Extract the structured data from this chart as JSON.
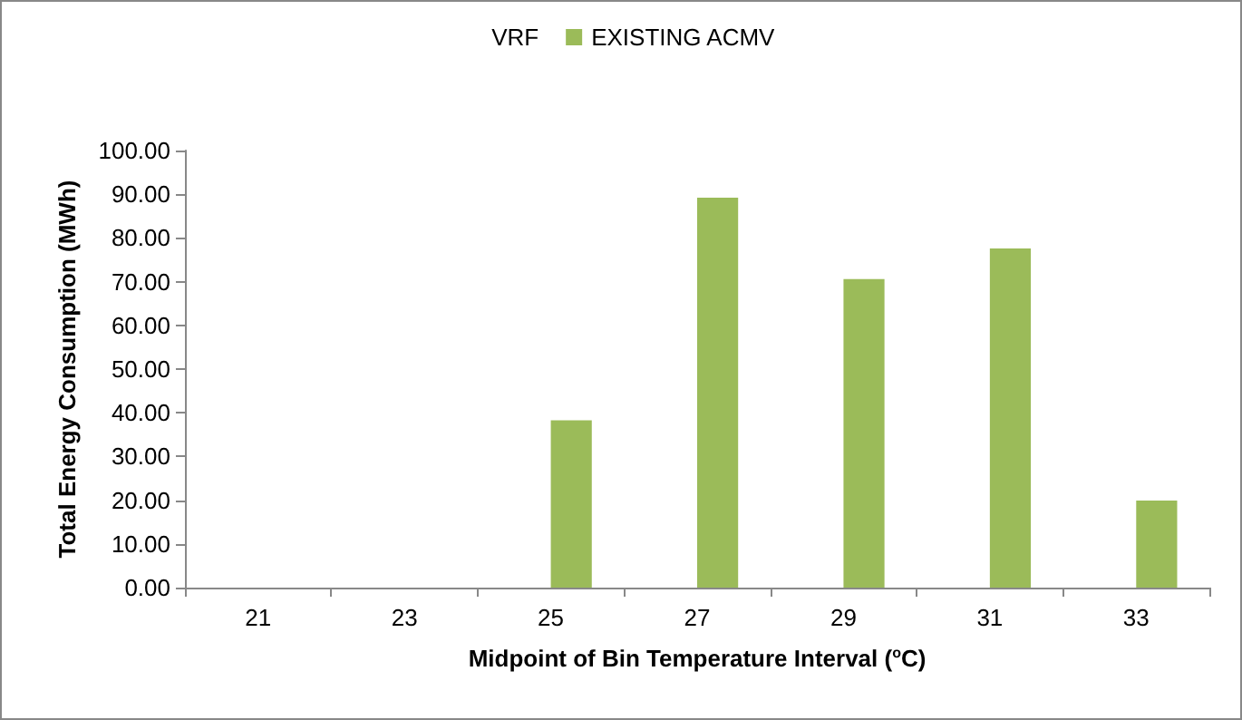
{
  "chart_data": {
    "type": "bar",
    "xlabel": "Midpoint of Bin Temperature Interval ($^{o}$C)",
    "ylabel": "Total Energy Consumption (MWh)",
    "categories": [
      "21",
      "23",
      "25",
      "27",
      "29",
      "31",
      "33"
    ],
    "series": [
      {
        "name": "VRF",
        "values": [
          0,
          0,
          0,
          0,
          0,
          0,
          0
        ]
      },
      {
        "name": "EXISTING ACMV",
        "color": "#9bbb59",
        "values": [
          0,
          0,
          38.3,
          89.2,
          70.6,
          77.6,
          19.9
        ]
      }
    ],
    "ylim": [
      0,
      100
    ],
    "yticks": [
      {
        "value": 0,
        "label": "0.00"
      },
      {
        "value": 10,
        "label": "10.00"
      },
      {
        "value": 20,
        "label": "20.00"
      },
      {
        "value": 30,
        "label": "30.00"
      },
      {
        "value": 40,
        "label": "40.00"
      },
      {
        "value": 50,
        "label": "50.00"
      },
      {
        "value": 60,
        "label": "60.00"
      },
      {
        "value": 70,
        "label": "70.00"
      },
      {
        "value": 80,
        "label": "80.00"
      },
      {
        "value": 90,
        "label": "90.00"
      },
      {
        "value": 100,
        "label": "100.00"
      }
    ],
    "grid": false,
    "legend": "top"
  }
}
